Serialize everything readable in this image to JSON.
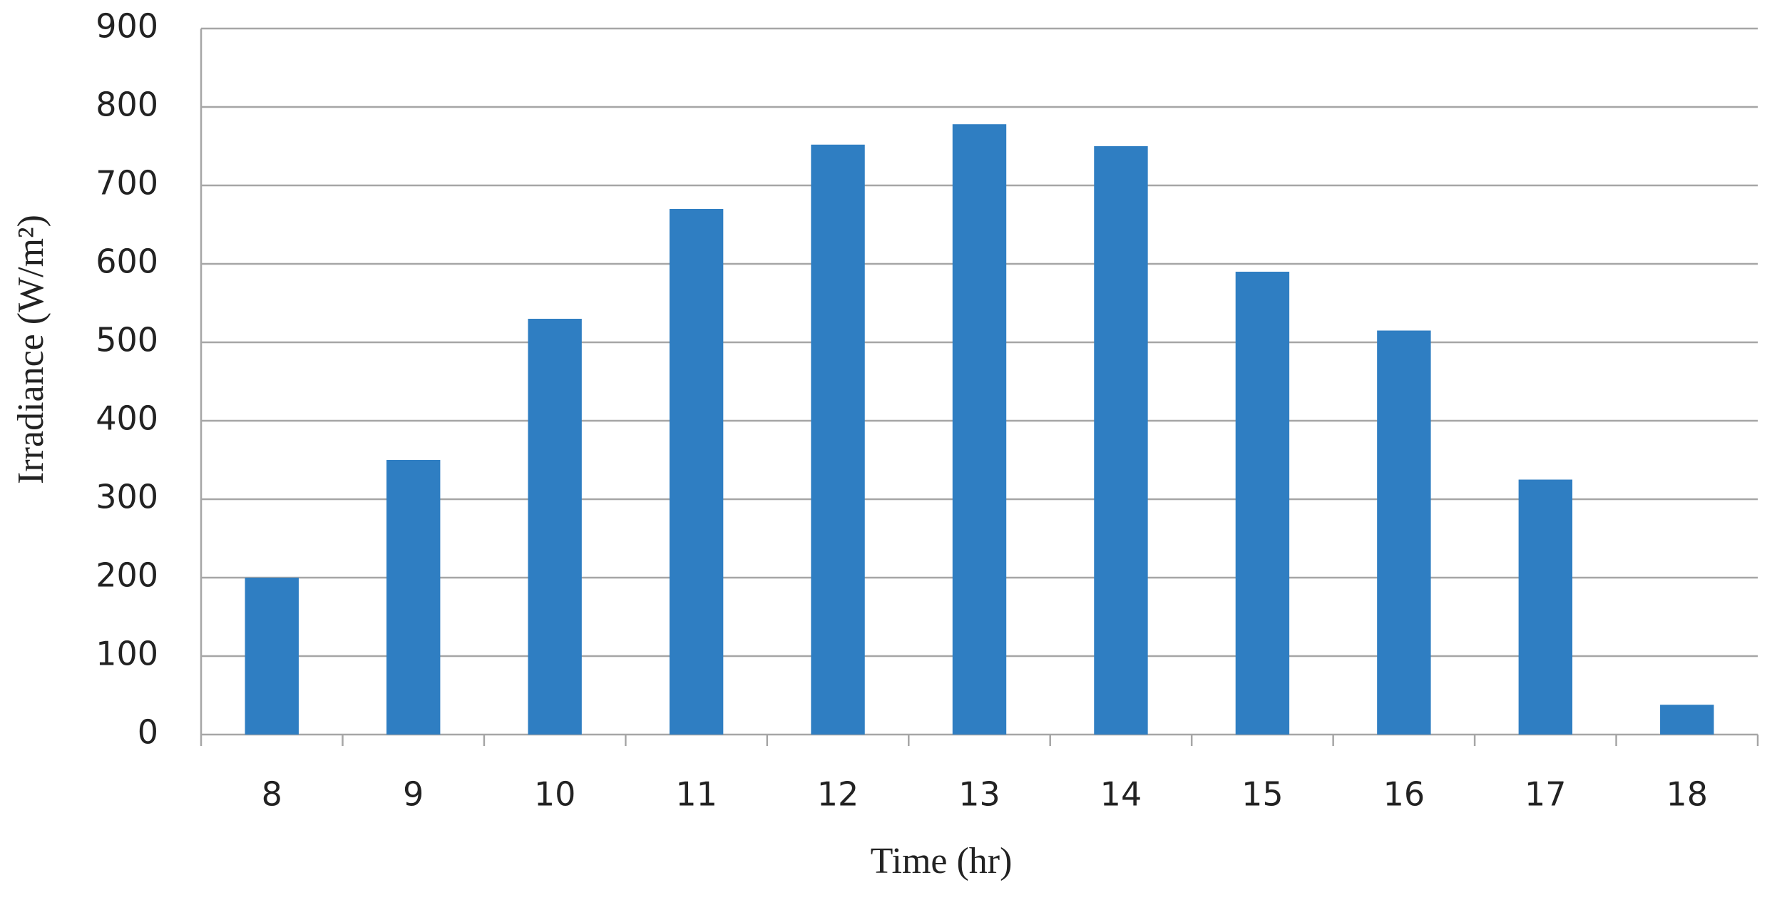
{
  "chart_data": {
    "type": "bar",
    "x_label": "Time (hr)",
    "y_label": "Irradiance (W/m²)",
    "categories": [
      "8",
      "9",
      "10",
      "11",
      "12",
      "13",
      "14",
      "15",
      "16",
      "17",
      "18"
    ],
    "values": [
      200,
      350,
      530,
      670,
      752,
      778,
      750,
      590,
      515,
      325,
      38
    ],
    "color": "#2f7ec2",
    "ylim": [
      0,
      900
    ],
    "yticks": [
      0,
      100,
      200,
      300,
      400,
      500,
      600,
      700,
      800,
      900
    ],
    "grid": true
  }
}
